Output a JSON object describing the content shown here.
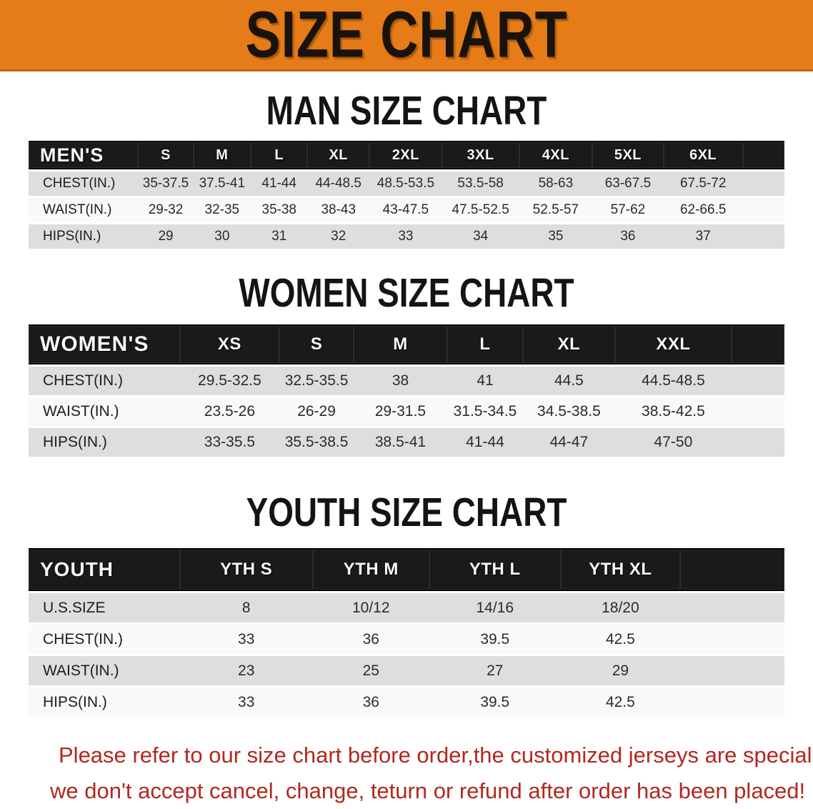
{
  "banner": {
    "title": "SIZE CHART"
  },
  "colors": {
    "banner_orange": "#e67c17",
    "header_band_black": "#1a1a1a",
    "stripe_gray": "#dedede",
    "stripe_white": "#f9f9f9",
    "notice_red": "#b1281f"
  },
  "sections": [
    {
      "title": "MAN SIZE CHART",
      "table": {
        "header": [
          "MEN'S",
          "S",
          "M",
          "L",
          "XL",
          "2XL",
          "3XL",
          "4XL",
          "5XL",
          "6XL"
        ],
        "rows": [
          {
            "label": "CHEST(IN.)",
            "values": [
              "35-37.5",
              "37.5-41",
              "41-44",
              "44-48.5",
              "48.5-53.5",
              "53.5-58",
              "58-63",
              "63-67.5",
              "67.5-72"
            ]
          },
          {
            "label": "WAIST(IN.)",
            "values": [
              "29-32",
              "32-35",
              "35-38",
              "38-43",
              "43-47.5",
              "47.5-52.5",
              "52.5-57",
              "57-62",
              "62-66.5"
            ]
          },
          {
            "label": "HIPS(IN.)",
            "values": [
              "29",
              "30",
              "31",
              "32",
              "33",
              "34",
              "35",
              "36",
              "37"
            ]
          }
        ]
      }
    },
    {
      "title": "WOMEN SIZE CHART",
      "table": {
        "header": [
          "WOMEN'S",
          "XS",
          "S",
          "M",
          "L",
          "XL",
          "XXL"
        ],
        "rows": [
          {
            "label": "CHEST(IN.)",
            "values": [
              "29.5-32.5",
              "32.5-35.5",
              "38",
              "41",
              "44.5",
              "44.5-48.5"
            ]
          },
          {
            "label": "WAIST(IN.)",
            "values": [
              "23.5-26",
              "26-29",
              "29-31.5",
              "31.5-34.5",
              "34.5-38.5",
              "38.5-42.5"
            ]
          },
          {
            "label": "HIPS(IN.)",
            "values": [
              "33-35.5",
              "35.5-38.5",
              "38.5-41",
              "41-44",
              "44-47",
              "47-50"
            ]
          }
        ]
      }
    },
    {
      "title": "YOUTH SIZE CHART",
      "table": {
        "header": [
          "YOUTH",
          "YTH S",
          "YTH M",
          "YTH L",
          "YTH XL"
        ],
        "rows": [
          {
            "label": "U.S.SIZE",
            "values": [
              "8",
              "10/12",
              "14/16",
              "18/20"
            ]
          },
          {
            "label": "CHEST(IN.)",
            "values": [
              "33",
              "36",
              "39.5",
              "42.5"
            ]
          },
          {
            "label": "WAIST(IN.)",
            "values": [
              "23",
              "25",
              "27",
              "29"
            ]
          },
          {
            "label": "HIPS(IN.)",
            "values": [
              "33",
              "36",
              "39.5",
              "42.5"
            ]
          }
        ]
      }
    }
  ],
  "notice": {
    "lines": [
      "Please refer to our size chart before order,the customized jerseys are special products,",
      "we don't accept cancel, change, teturn or refund after order has been placed!"
    ]
  }
}
